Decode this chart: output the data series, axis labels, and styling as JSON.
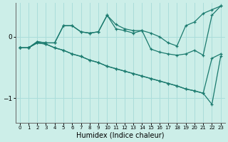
{
  "xlabel": "Humidex (Indice chaleur)",
  "background_color": "#cceee8",
  "grid_color": "#aaddda",
  "line_color": "#1a7a6e",
  "xlim": [
    -0.5,
    23.5
  ],
  "ylim": [
    -1.4,
    0.55
  ],
  "yticks": [
    0,
    -1
  ],
  "xticks": [
    0,
    1,
    2,
    3,
    4,
    5,
    6,
    7,
    8,
    9,
    10,
    11,
    12,
    13,
    14,
    15,
    16,
    17,
    18,
    19,
    20,
    21,
    22,
    23
  ],
  "lines": [
    {
      "x": [
        0,
        1,
        2,
        3,
        4,
        5,
        6,
        7,
        8,
        9,
        10,
        11,
        12,
        13,
        14,
        15,
        16,
        17,
        18,
        19,
        20,
        21,
        22,
        23
      ],
      "y": [
        -0.18,
        -0.18,
        -0.08,
        -0.1,
        -0.1,
        0.18,
        0.18,
        0.08,
        0.06,
        0.08,
        0.35,
        0.13,
        0.1,
        0.06,
        0.1,
        0.06,
        0.0,
        -0.1,
        -0.15,
        0.18,
        0.24,
        0.38,
        0.44,
        0.5
      ]
    },
    {
      "x": [
        0,
        1,
        2,
        3,
        4,
        5,
        6,
        7,
        8,
        9,
        10,
        11,
        12,
        13,
        14,
        15,
        16,
        17,
        18,
        19,
        20,
        21,
        22,
        23
      ],
      "y": [
        -0.18,
        -0.18,
        -0.08,
        -0.1,
        -0.1,
        0.18,
        0.18,
        0.08,
        0.06,
        0.08,
        0.35,
        0.2,
        0.13,
        0.1,
        0.1,
        -0.2,
        -0.25,
        -0.28,
        -0.3,
        -0.28,
        -0.22,
        -0.3,
        0.35,
        0.5
      ]
    },
    {
      "x": [
        0,
        1,
        2,
        3,
        4,
        5,
        6,
        7,
        8,
        9,
        10,
        11,
        12,
        13,
        14,
        15,
        16,
        17,
        18,
        19,
        20,
        21,
        22,
        23
      ],
      "y": [
        -0.18,
        -0.18,
        -0.1,
        -0.12,
        -0.18,
        -0.22,
        -0.28,
        -0.32,
        -0.38,
        -0.42,
        -0.48,
        -0.52,
        -0.56,
        -0.6,
        -0.64,
        -0.68,
        -0.72,
        -0.76,
        -0.8,
        -0.85,
        -0.88,
        -0.92,
        -0.35,
        -0.28
      ]
    },
    {
      "x": [
        0,
        1,
        2,
        3,
        4,
        5,
        6,
        7,
        8,
        9,
        10,
        11,
        12,
        13,
        14,
        15,
        16,
        17,
        18,
        19,
        20,
        21,
        22,
        23
      ],
      "y": [
        -0.18,
        -0.18,
        -0.1,
        -0.12,
        -0.18,
        -0.22,
        -0.28,
        -0.32,
        -0.38,
        -0.42,
        -0.48,
        -0.52,
        -0.56,
        -0.6,
        -0.64,
        -0.68,
        -0.72,
        -0.76,
        -0.8,
        -0.85,
        -0.88,
        -0.92,
        -1.1,
        -0.32
      ]
    }
  ]
}
